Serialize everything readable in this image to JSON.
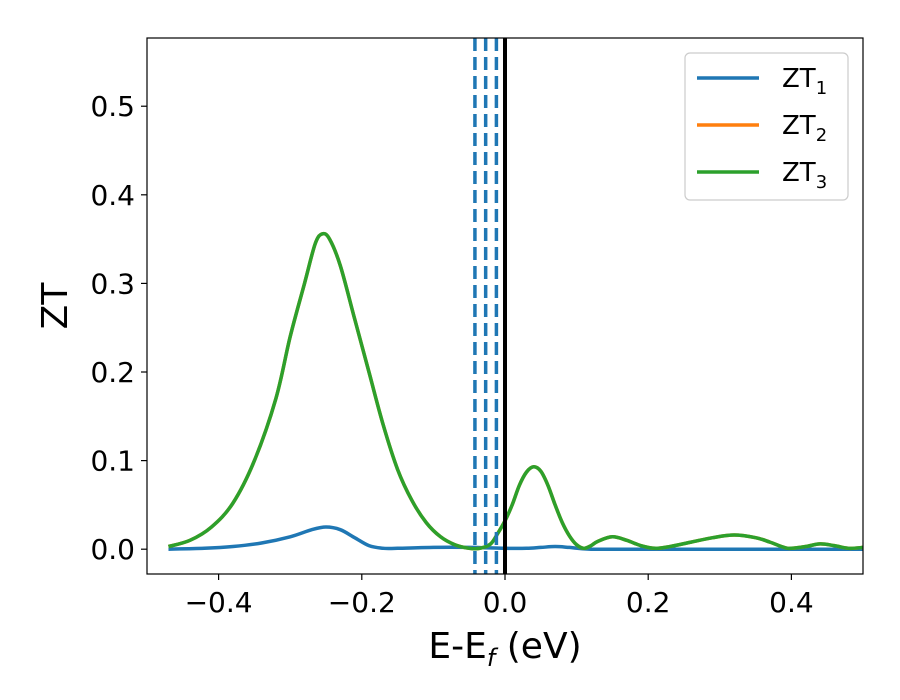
{
  "chart_data": {
    "type": "line",
    "title": "",
    "xlabel": "E-E",
    "xlabel_sub": "f",
    "xlabel_unit": " (eV)",
    "ylabel": "ZT",
    "xlim": [
      -0.5,
      0.5
    ],
    "ylim": [
      -0.028,
      0.577
    ],
    "xticks": [
      -0.4,
      -0.2,
      0.0,
      0.2,
      0.4
    ],
    "xtick_labels": [
      "−0.4",
      "−0.2",
      "0.0",
      "0.2",
      "0.4"
    ],
    "yticks": [
      0.0,
      0.1,
      0.2,
      0.3,
      0.4,
      0.5
    ],
    "ytick_labels": [
      "0.0",
      "0.1",
      "0.2",
      "0.3",
      "0.4",
      "0.5"
    ],
    "grid": false,
    "legend_position": "top-right",
    "vlines": [
      {
        "x": -0.042,
        "style": "dashed",
        "color": "#1f77b4"
      },
      {
        "x": -0.027,
        "style": "dashed",
        "color": "#1f77b4"
      },
      {
        "x": -0.012,
        "style": "dashed",
        "color": "#1f77b4"
      },
      {
        "x": 0.0,
        "style": "solid",
        "color": "#000000"
      }
    ],
    "series": [
      {
        "name": "ZT",
        "sub": "1",
        "color": "#1f77b4",
        "x": [
          -0.47,
          -0.42,
          -0.38,
          -0.34,
          -0.3,
          -0.27,
          -0.25,
          -0.23,
          -0.21,
          -0.19,
          -0.17,
          -0.15,
          -0.1,
          -0.05,
          0.0,
          0.03,
          0.05,
          0.07,
          0.09,
          0.12,
          0.2,
          0.3,
          0.4,
          0.5
        ],
        "y": [
          0.0,
          0.001,
          0.003,
          0.007,
          0.014,
          0.022,
          0.025,
          0.022,
          0.013,
          0.004,
          0.001,
          0.001,
          0.002,
          0.002,
          0.001,
          0.001,
          0.002,
          0.003,
          0.002,
          0.0,
          0.0,
          0.0,
          0.0,
          0.0
        ]
      },
      {
        "name": "ZT",
        "sub": "2",
        "color": "#ff7f0e",
        "x": [
          -0.47,
          -0.44,
          -0.41,
          -0.38,
          -0.35,
          -0.32,
          -0.3,
          -0.28,
          -0.265,
          -0.255,
          -0.245,
          -0.23,
          -0.21,
          -0.19,
          -0.17,
          -0.15,
          -0.13,
          -0.11,
          -0.09,
          -0.07,
          -0.05,
          -0.035,
          -0.02,
          -0.01,
          0.0,
          0.01,
          0.02,
          0.03,
          0.04,
          0.05,
          0.06,
          0.07,
          0.08,
          0.09,
          0.1,
          0.11,
          0.12,
          0.13,
          0.15,
          0.17,
          0.19,
          0.21,
          0.23,
          0.26,
          0.29,
          0.32,
          0.35,
          0.37,
          0.39,
          0.4,
          0.42,
          0.44,
          0.46,
          0.48,
          0.5
        ],
        "y": [
          0.003,
          0.01,
          0.025,
          0.052,
          0.1,
          0.17,
          0.24,
          0.3,
          0.345,
          0.356,
          0.35,
          0.32,
          0.26,
          0.2,
          0.14,
          0.09,
          0.055,
          0.03,
          0.014,
          0.005,
          0.001,
          0.001,
          0.006,
          0.018,
          0.032,
          0.05,
          0.072,
          0.087,
          0.093,
          0.088,
          0.072,
          0.05,
          0.03,
          0.015,
          0.005,
          0.001,
          0.004,
          0.009,
          0.014,
          0.01,
          0.004,
          0.001,
          0.003,
          0.008,
          0.013,
          0.016,
          0.013,
          0.008,
          0.002,
          0.001,
          0.003,
          0.006,
          0.004,
          0.001,
          0.002
        ]
      },
      {
        "name": "ZT",
        "sub": "3",
        "color": "#2ca02c",
        "x": [
          -0.47,
          -0.44,
          -0.41,
          -0.38,
          -0.35,
          -0.32,
          -0.3,
          -0.28,
          -0.265,
          -0.255,
          -0.245,
          -0.23,
          -0.21,
          -0.19,
          -0.17,
          -0.15,
          -0.13,
          -0.11,
          -0.09,
          -0.07,
          -0.05,
          -0.035,
          -0.02,
          -0.01,
          0.0,
          0.01,
          0.02,
          0.03,
          0.04,
          0.05,
          0.06,
          0.07,
          0.08,
          0.09,
          0.1,
          0.11,
          0.12,
          0.13,
          0.15,
          0.17,
          0.19,
          0.21,
          0.23,
          0.26,
          0.29,
          0.32,
          0.35,
          0.37,
          0.39,
          0.4,
          0.42,
          0.44,
          0.46,
          0.48,
          0.5
        ],
        "y": [
          0.003,
          0.01,
          0.025,
          0.052,
          0.1,
          0.17,
          0.24,
          0.3,
          0.345,
          0.356,
          0.35,
          0.32,
          0.26,
          0.2,
          0.14,
          0.09,
          0.055,
          0.03,
          0.014,
          0.005,
          0.001,
          0.001,
          0.006,
          0.018,
          0.032,
          0.05,
          0.072,
          0.087,
          0.093,
          0.088,
          0.072,
          0.05,
          0.03,
          0.015,
          0.005,
          0.001,
          0.004,
          0.009,
          0.014,
          0.01,
          0.004,
          0.001,
          0.003,
          0.008,
          0.013,
          0.016,
          0.013,
          0.008,
          0.002,
          0.001,
          0.003,
          0.006,
          0.004,
          0.001,
          0.002
        ]
      }
    ]
  }
}
